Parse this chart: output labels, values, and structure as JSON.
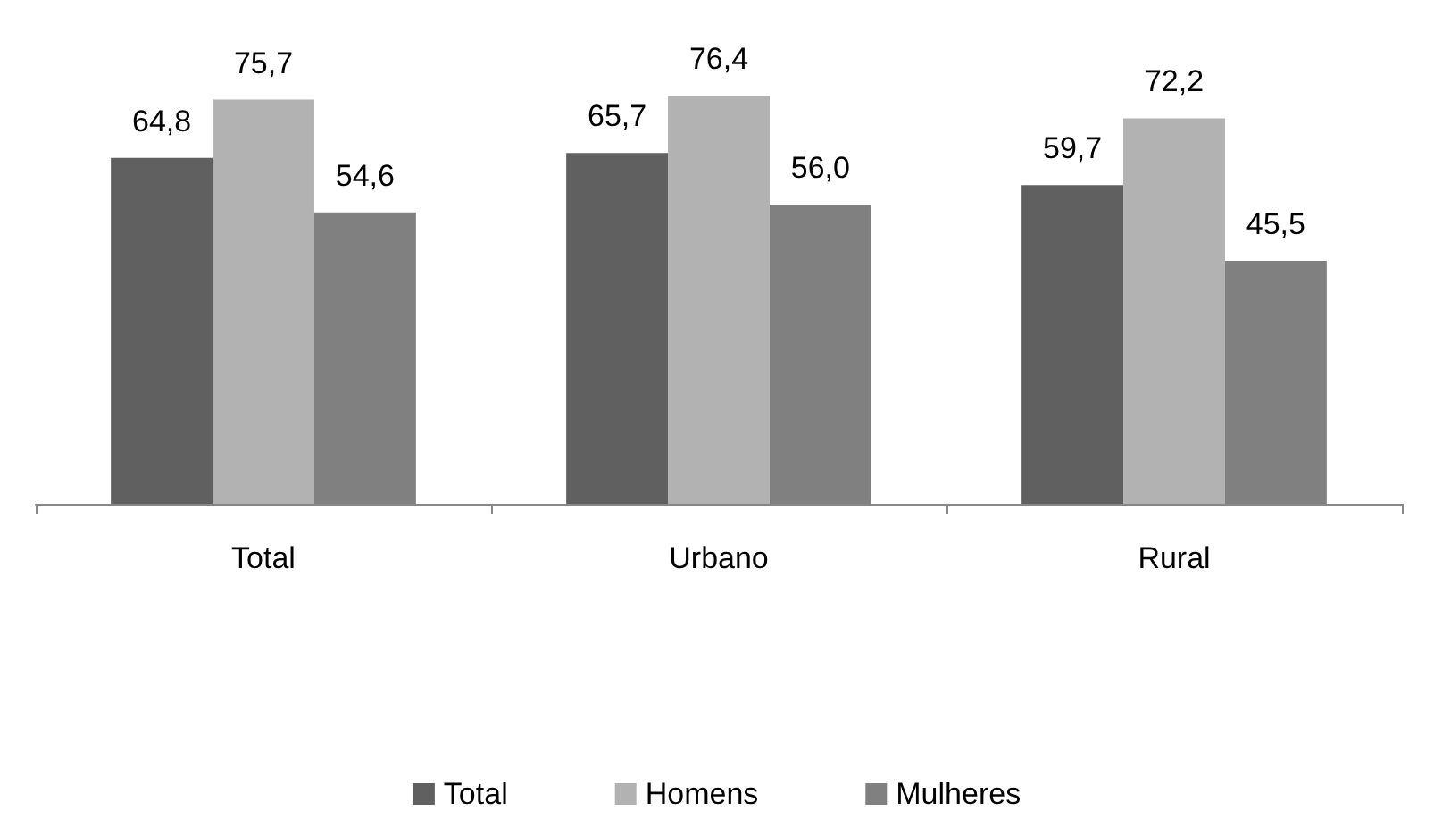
{
  "chart_data": {
    "type": "bar",
    "categories": [
      "Total",
      "Urbano",
      "Rural"
    ],
    "series": [
      {
        "name": "Total",
        "color": "#606060",
        "values": [
          64.8,
          65.7,
          59.7
        ],
        "value_labels": [
          "64,8",
          "65,7",
          "59,7"
        ]
      },
      {
        "name": "Homens",
        "color": "#b2b2b2",
        "values": [
          75.7,
          76.4,
          72.2
        ],
        "value_labels": [
          "75,7",
          "76,4",
          "72,2"
        ]
      },
      {
        "name": "Mulheres",
        "color": "#808080",
        "values": [
          54.6,
          56.0,
          45.5
        ],
        "value_labels": [
          "54,6",
          "56,0",
          "45,5"
        ]
      }
    ],
    "legend": "bottom"
  }
}
